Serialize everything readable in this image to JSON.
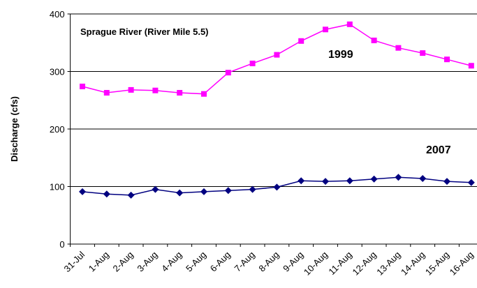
{
  "chart_data": {
    "type": "line",
    "title": "Sprague River (River Mile 5.5)",
    "y_label": "Discharge (cfs)",
    "categories": [
      "31-Jul",
      "1-Aug",
      "2-Aug",
      "3-Aug",
      "4-Aug",
      "5-Aug",
      "6-Aug",
      "7-Aug",
      "8-Aug",
      "9-Aug",
      "10-Aug",
      "11-Aug",
      "12-Aug",
      "13-Aug",
      "14-Aug",
      "15-Aug",
      "16-Aug"
    ],
    "series": [
      {
        "name": "1999",
        "color": "#ff00ff",
        "marker": "square",
        "values": [
          274,
          263,
          268,
          267,
          263,
          261,
          298,
          314,
          329,
          353,
          373,
          382,
          354,
          341,
          332,
          321,
          310
        ]
      },
      {
        "name": "2007",
        "color": "#000080",
        "marker": "diamond",
        "values": [
          91,
          87,
          85,
          95,
          89,
          91,
          93,
          95,
          99,
          110,
          109,
          110,
          113,
          116,
          114,
          109,
          107
        ]
      }
    ],
    "ylim": [
      0,
      400
    ],
    "yticks": [
      0,
      100,
      200,
      300,
      400
    ],
    "grid": true
  }
}
